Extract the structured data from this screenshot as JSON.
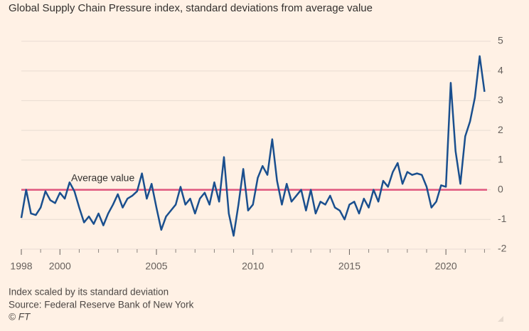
{
  "chart_data": {
    "type": "line",
    "title": "Global Supply Chain Pressure index, standard deviations from average value",
    "notes": [
      "Index scaled by its standard deviation",
      "Source: Federal Reserve Bank of New York",
      "© FT"
    ],
    "annotation": {
      "text": "Average value",
      "value": 0,
      "color": "#e0567e"
    },
    "x": [
      1998.0,
      1998.25,
      1998.5,
      1998.75,
      1999.0,
      1999.25,
      1999.5,
      1999.75,
      2000.0,
      2000.25,
      2000.5,
      2000.75,
      2001.0,
      2001.25,
      2001.5,
      2001.75,
      2002.0,
      2002.25,
      2002.5,
      2002.75,
      2003.0,
      2003.25,
      2003.5,
      2003.75,
      2004.0,
      2004.25,
      2004.5,
      2004.75,
      2005.0,
      2005.25,
      2005.5,
      2005.75,
      2006.0,
      2006.25,
      2006.5,
      2006.75,
      2007.0,
      2007.25,
      2007.5,
      2007.75,
      2008.0,
      2008.25,
      2008.5,
      2008.75,
      2009.0,
      2009.25,
      2009.5,
      2009.75,
      2010.0,
      2010.25,
      2010.5,
      2010.75,
      2011.0,
      2011.25,
      2011.5,
      2011.75,
      2012.0,
      2012.25,
      2012.5,
      2012.75,
      2013.0,
      2013.25,
      2013.5,
      2013.75,
      2014.0,
      2014.25,
      2014.5,
      2014.75,
      2015.0,
      2015.25,
      2015.5,
      2015.75,
      2016.0,
      2016.25,
      2016.5,
      2016.75,
      2017.0,
      2017.25,
      2017.5,
      2017.75,
      2018.0,
      2018.25,
      2018.5,
      2018.75,
      2019.0,
      2019.25,
      2019.5,
      2019.75,
      2020.0,
      2020.25,
      2020.5,
      2020.75,
      2021.0,
      2021.25,
      2021.5,
      2021.75,
      2022.0
    ],
    "series": [
      {
        "name": "Global Supply Chain Pressure index",
        "color": "#1a4f8e",
        "values": [
          -0.95,
          0.0,
          -0.8,
          -0.85,
          -0.6,
          -0.05,
          -0.35,
          -0.45,
          -0.1,
          -0.3,
          0.25,
          -0.05,
          -0.6,
          -1.1,
          -0.9,
          -1.15,
          -0.8,
          -1.2,
          -0.8,
          -0.5,
          -0.15,
          -0.6,
          -0.3,
          -0.2,
          -0.05,
          0.55,
          -0.3,
          0.2,
          -0.6,
          -1.35,
          -0.9,
          -0.7,
          -0.5,
          0.1,
          -0.5,
          -0.3,
          -0.8,
          -0.3,
          -0.1,
          -0.5,
          0.25,
          -0.4,
          1.1,
          -0.8,
          -1.55,
          -0.5,
          0.7,
          -0.7,
          -0.5,
          0.4,
          0.8,
          0.5,
          1.7,
          0.3,
          -0.5,
          0.2,
          -0.4,
          -0.2,
          0.0,
          -0.7,
          0.0,
          -0.8,
          -0.4,
          -0.5,
          -0.2,
          -0.6,
          -0.7,
          -1.0,
          -0.5,
          -0.4,
          -0.8,
          -0.3,
          -0.6,
          0.0,
          -0.4,
          0.3,
          0.1,
          0.6,
          0.9,
          0.2,
          0.6,
          0.5,
          0.55,
          0.5,
          0.1,
          -0.6,
          -0.4,
          0.15,
          0.1,
          3.6,
          1.3,
          0.2,
          1.8,
          2.3,
          3.1,
          4.5,
          3.3
        ]
      }
    ],
    "xlim": [
      1998,
      2022.5
    ],
    "xticks": [
      1998,
      2000,
      2005,
      2010,
      2015,
      2020
    ],
    "xminorticks": [
      1999,
      2001,
      2002,
      2003,
      2004,
      2006,
      2007,
      2008,
      2009,
      2011,
      2012,
      2013,
      2014,
      2016,
      2017,
      2018,
      2019,
      2021,
      2022
    ],
    "ylim": [
      -2,
      5
    ],
    "yticks": [
      -2,
      -1,
      0,
      1,
      2,
      3,
      4,
      5
    ],
    "grid": true
  }
}
